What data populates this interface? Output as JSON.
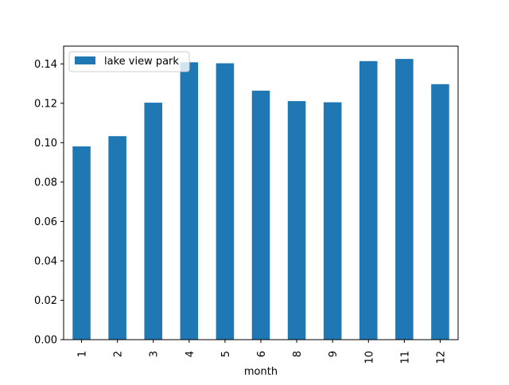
{
  "chart_data": {
    "type": "bar",
    "categories": [
      "1",
      "2",
      "3",
      "4",
      "5",
      "6",
      "8",
      "9",
      "10",
      "11",
      "12"
    ],
    "series": [
      {
        "name": "lake view park",
        "values": [
          0.0981,
          0.1033,
          0.1203,
          0.1408,
          0.1403,
          0.1264,
          0.1211,
          0.1205,
          0.1414,
          0.1425,
          0.1297
        ],
        "color": "#1f77b4"
      }
    ],
    "title": "",
    "xlabel": "month",
    "ylabel": "",
    "ylim": [
      0,
      0.149
    ],
    "yticks": [
      "0.00",
      "0.02",
      "0.04",
      "0.06",
      "0.08",
      "0.10",
      "0.12",
      "0.14"
    ],
    "grid": false,
    "legend_position": "upper-left"
  }
}
